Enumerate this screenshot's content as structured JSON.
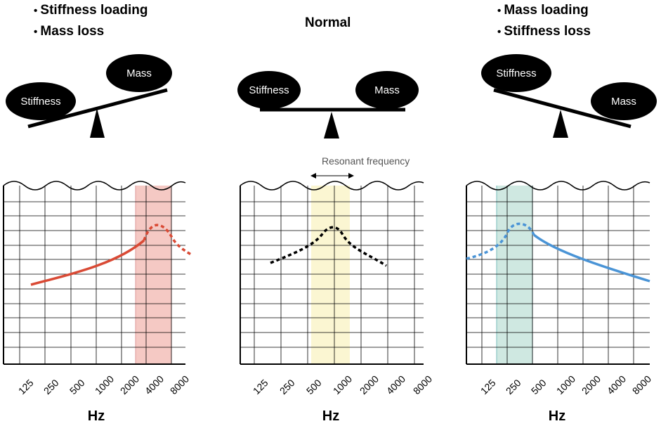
{
  "left": {
    "bullets": [
      "Stiffness loading",
      "Mass loss"
    ],
    "seesaw": {
      "low_label": "Stiffness",
      "high_label": "Mass"
    },
    "x_ticks": [
      "125",
      "250",
      "500",
      "1000",
      "2000",
      "4000",
      "8000"
    ],
    "x_label": "Hz",
    "curve_color": "#d94a35",
    "band_color": "#f5c9c4"
  },
  "center": {
    "title": "Normal",
    "seesaw": {
      "left_label": "Stiffness",
      "right_label": "Mass"
    },
    "annotation": "Resonant frequency",
    "x_ticks": [
      "125",
      "250",
      "500",
      "1000",
      "2000",
      "4000",
      "8000"
    ],
    "x_label": "Hz",
    "curve_color": "#000000",
    "band_color": "#fbf6d2"
  },
  "right": {
    "bullets": [
      "Mass loading",
      "Stiffness loss"
    ],
    "seesaw": {
      "high_label": "Stiffness",
      "low_label": "Mass"
    },
    "x_ticks": [
      "125",
      "250",
      "500",
      "1000",
      "2000",
      "4000",
      "8000"
    ],
    "x_label": "Hz",
    "curve_color": "#4a94d6",
    "band_color": "#cfe8e1"
  }
}
